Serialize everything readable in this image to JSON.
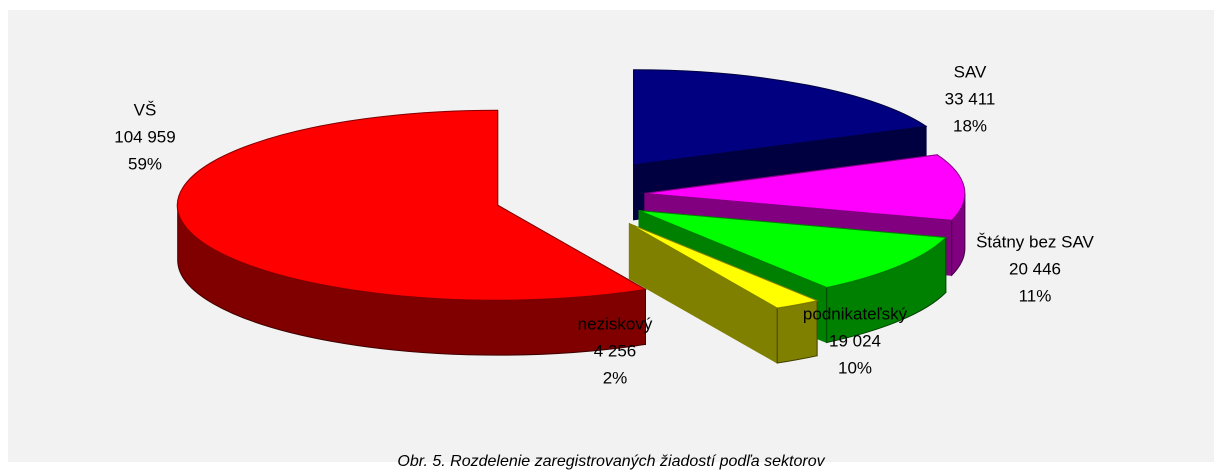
{
  "chart_data": {
    "type": "pie3d",
    "title": "Obr. 5. Rozdelenie zaregistrovaných žiadostí podľa sektorov",
    "categories": [
      "SAV",
      "Štátny bez SAV",
      "podnikateľský",
      "neziskový",
      "VŠ"
    ],
    "values": [
      33411,
      20446,
      19024,
      4256,
      104959
    ],
    "value_labels": [
      "33 411",
      "20 446",
      "19 024",
      "4 256",
      "104 959"
    ],
    "percent_labels": [
      "18%",
      "11%",
      "10%",
      "2%",
      "59%"
    ],
    "colors": [
      "#000080",
      "#ff00ff",
      "#00ff00",
      "#ffff00",
      "#ff0000"
    ]
  }
}
